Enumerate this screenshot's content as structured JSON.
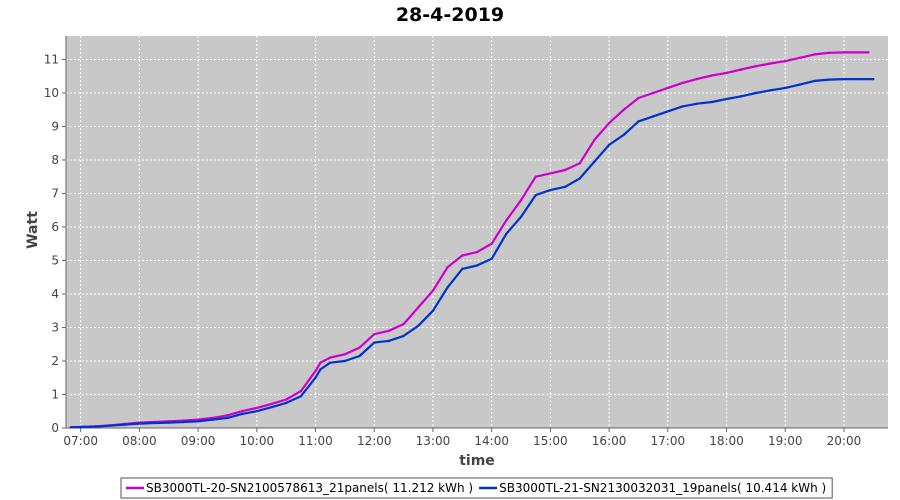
{
  "chart_data": {
    "type": "line",
    "title": "28-4-2019",
    "xlabel": "time",
    "ylabel": "Watt",
    "xlim": [
      "06:45",
      "20:45"
    ],
    "ylim": [
      0,
      11.7
    ],
    "x_ticks": [
      "07:00",
      "08:00",
      "09:00",
      "10:00",
      "11:00",
      "12:00",
      "13:00",
      "14:00",
      "15:00",
      "16:00",
      "17:00",
      "18:00",
      "19:00",
      "20:00"
    ],
    "y_ticks": [
      "0",
      "1",
      "2",
      "3",
      "4",
      "5",
      "6",
      "7",
      "8",
      "9",
      "10",
      "11"
    ],
    "grid": true,
    "legend_position": "bottom",
    "colors": {
      "plot_background": "#c8c8c8",
      "grid": "#ffffff",
      "series_1": "#cc00cc",
      "series_2": "#0033cc"
    },
    "series": [
      {
        "name": "SB3000TL-20-SN2100578613_21panels( 11.212 kWh )",
        "x": [
          "06:50",
          "07:00",
          "07:15",
          "07:30",
          "07:45",
          "08:00",
          "08:15",
          "08:30",
          "08:45",
          "09:00",
          "09:15",
          "09:30",
          "09:45",
          "10:00",
          "10:15",
          "10:30",
          "10:45",
          "11:00",
          "11:05",
          "11:15",
          "11:30",
          "11:45",
          "12:00",
          "12:15",
          "12:30",
          "12:45",
          "13:00",
          "13:15",
          "13:30",
          "13:45",
          "14:00",
          "14:15",
          "14:30",
          "14:45",
          "15:00",
          "15:15",
          "15:30",
          "15:45",
          "16:00",
          "16:15",
          "16:30",
          "16:45",
          "17:00",
          "17:15",
          "17:30",
          "17:45",
          "18:00",
          "18:15",
          "18:30",
          "18:45",
          "19:00",
          "19:15",
          "19:30",
          "19:45",
          "20:00",
          "20:15",
          "20:25"
        ],
        "values": [
          0.02,
          0.03,
          0.05,
          0.08,
          0.12,
          0.16,
          0.18,
          0.2,
          0.22,
          0.25,
          0.3,
          0.38,
          0.5,
          0.6,
          0.72,
          0.85,
          1.1,
          1.7,
          1.95,
          2.1,
          2.2,
          2.4,
          2.8,
          2.9,
          3.1,
          3.6,
          4.1,
          4.8,
          5.15,
          5.25,
          5.5,
          6.2,
          6.8,
          7.5,
          7.6,
          7.7,
          7.9,
          8.6,
          9.1,
          9.5,
          9.85,
          10.0,
          10.15,
          10.3,
          10.42,
          10.52,
          10.6,
          10.7,
          10.8,
          10.88,
          10.95,
          11.05,
          11.15,
          11.2,
          11.21,
          11.212,
          11.212
        ]
      },
      {
        "name": "SB3000TL-21-SN2130032031_19panels( 10.414 kWh )",
        "x": [
          "06:50",
          "07:00",
          "07:15",
          "07:30",
          "07:45",
          "08:00",
          "08:15",
          "08:30",
          "08:45",
          "09:00",
          "09:15",
          "09:30",
          "09:45",
          "10:00",
          "10:15",
          "10:30",
          "10:45",
          "11:00",
          "11:05",
          "11:15",
          "11:30",
          "11:45",
          "12:00",
          "12:15",
          "12:30",
          "12:45",
          "13:00",
          "13:15",
          "13:30",
          "13:45",
          "14:00",
          "14:15",
          "14:30",
          "14:45",
          "15:00",
          "15:15",
          "15:30",
          "15:45",
          "16:00",
          "16:15",
          "16:30",
          "16:45",
          "17:00",
          "17:15",
          "17:30",
          "17:45",
          "18:00",
          "18:15",
          "18:30",
          "18:45",
          "19:00",
          "19:15",
          "19:30",
          "19:45",
          "20:00",
          "20:15",
          "20:30"
        ],
        "values": [
          0.02,
          0.03,
          0.04,
          0.07,
          0.1,
          0.13,
          0.15,
          0.16,
          0.18,
          0.2,
          0.25,
          0.3,
          0.42,
          0.5,
          0.62,
          0.75,
          0.95,
          1.5,
          1.75,
          1.95,
          2.0,
          2.15,
          2.55,
          2.6,
          2.75,
          3.05,
          3.5,
          4.2,
          4.75,
          4.85,
          5.05,
          5.8,
          6.3,
          6.95,
          7.1,
          7.2,
          7.45,
          7.95,
          8.45,
          8.75,
          9.15,
          9.3,
          9.45,
          9.6,
          9.68,
          9.73,
          9.82,
          9.9,
          10.0,
          10.08,
          10.15,
          10.25,
          10.36,
          10.4,
          10.414,
          10.414,
          10.414
        ]
      }
    ]
  }
}
